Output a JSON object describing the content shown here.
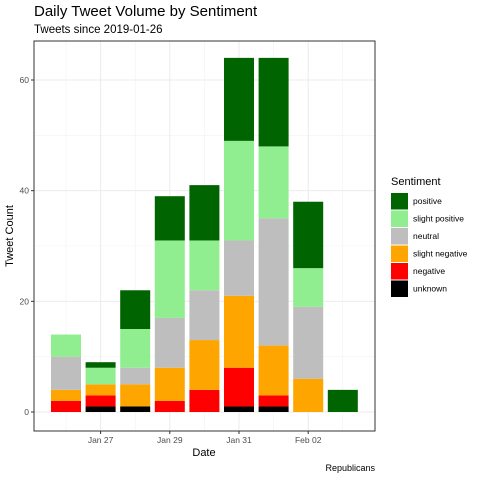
{
  "chart_data": {
    "type": "bar",
    "stacked": true,
    "title": "Daily Tweet Volume by Sentiment",
    "subtitle": "Tweets since 2019-01-26",
    "xlabel": "Date",
    "ylabel": "Tweet Count",
    "caption": "Republicans",
    "categories": [
      "2019-01-26",
      "2019-01-27",
      "2019-01-28",
      "2019-01-29",
      "2019-01-30",
      "2019-01-31",
      "2019-02-01",
      "2019-02-02",
      "2019-02-03"
    ],
    "x_ticks": [
      {
        "date": "2019-01-27",
        "label": "Jan 27"
      },
      {
        "date": "2019-01-29",
        "label": "Jan 29"
      },
      {
        "date": "2019-01-31",
        "label": "Jan 31"
      },
      {
        "date": "2019-02-02",
        "label": "Feb 02"
      }
    ],
    "ylim": [
      0,
      66
    ],
    "y_ticks": [
      0,
      20,
      40,
      60
    ],
    "grid": true,
    "legend_title": "Sentiment",
    "legend_position": "right",
    "series": [
      {
        "name": "unknown",
        "color": "#000000",
        "values": [
          0,
          1,
          1,
          0,
          0,
          1,
          1,
          0,
          0
        ]
      },
      {
        "name": "negative",
        "color": "#ff0000",
        "values": [
          2,
          2,
          0,
          2,
          4,
          7,
          2,
          0,
          0
        ]
      },
      {
        "name": "slight negative",
        "color": "#ffa500",
        "values": [
          2,
          2,
          4,
          6,
          9,
          13,
          9,
          6,
          0
        ]
      },
      {
        "name": "neutral",
        "color": "#bebebe",
        "values": [
          6,
          0,
          3,
          9,
          9,
          10,
          23,
          13,
          0
        ]
      },
      {
        "name": "slight positive",
        "color": "#90ee90",
        "values": [
          4,
          3,
          7,
          14,
          9,
          18,
          13,
          7,
          0
        ]
      },
      {
        "name": "positive",
        "color": "#006400",
        "values": [
          0,
          1,
          7,
          8,
          10,
          15,
          16,
          12,
          4
        ]
      }
    ],
    "legend_order": [
      "positive",
      "slight positive",
      "neutral",
      "slight negative",
      "negative",
      "unknown"
    ]
  }
}
